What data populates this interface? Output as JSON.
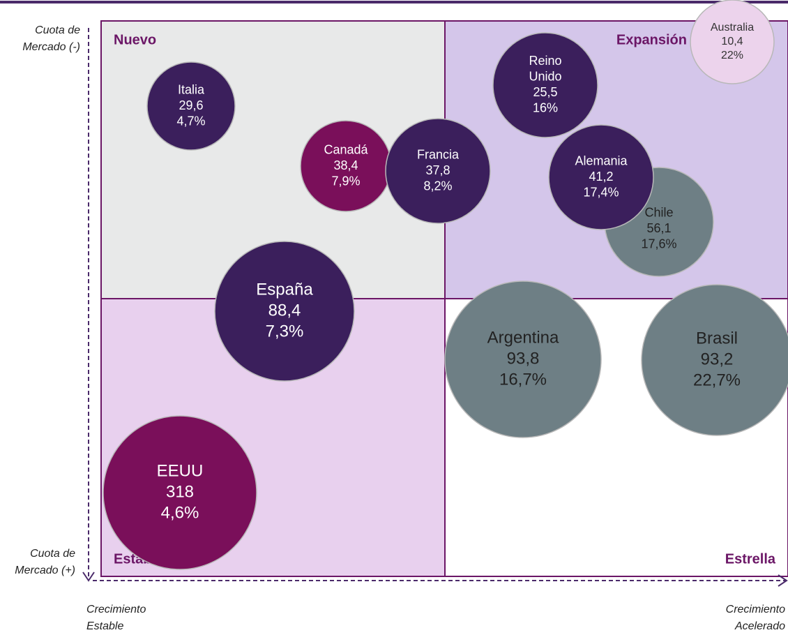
{
  "quadrants": {
    "top_left": "Nuevo",
    "top_right": "Expansión",
    "bottom_left": "Estable",
    "bottom_right": "Estrella"
  },
  "axes": {
    "y_top": [
      "Cuota de",
      "Mercado (-)"
    ],
    "y_bottom": [
      "Cuota de",
      "Mercado (+)"
    ],
    "x_left": [
      "Crecimiento",
      "Estable"
    ],
    "x_right": [
      "Crecimiento",
      "Acelerado"
    ]
  },
  "nodes": [
    {
      "lines": [
        "Australia",
        "10,4",
        "22%"
      ]
    },
    {
      "lines": [
        "Reino",
        "Unido",
        "25,5",
        "16%"
      ]
    },
    {
      "lines": [
        "Italia",
        "29,6",
        "4,7%"
      ]
    },
    {
      "lines": [
        "Canadá",
        "38,4",
        "7,9%"
      ]
    },
    {
      "lines": [
        "Francia",
        "37,8",
        "8,2%"
      ]
    },
    {
      "lines": [
        "Chile",
        "56,1",
        "17,6%"
      ]
    },
    {
      "lines": [
        "Alemania",
        "41,2",
        "17,4%"
      ]
    },
    {
      "lines": [
        "España",
        "88,4",
        "7,3%"
      ]
    },
    {
      "lines": [
        "Argentina",
        "93,8",
        "16,7%"
      ]
    },
    {
      "lines": [
        "Brasil",
        "93,2",
        "22,7%"
      ]
    },
    {
      "lines": [
        "EEUU",
        "318",
        "4,6%"
      ]
    }
  ]
}
